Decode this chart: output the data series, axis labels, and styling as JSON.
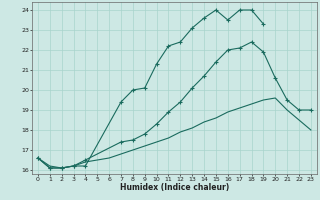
{
  "xlabel": "Humidex (Indice chaleur)",
  "bg_color": "#cde8e4",
  "grid_color": "#a8d4cc",
  "line_color": "#1a6b5e",
  "xlim": [
    -0.5,
    23.5
  ],
  "ylim": [
    15.8,
    24.4
  ],
  "xticks": [
    0,
    1,
    2,
    3,
    4,
    5,
    6,
    7,
    8,
    9,
    10,
    11,
    12,
    13,
    14,
    15,
    16,
    17,
    18,
    19,
    20,
    21,
    22,
    23
  ],
  "yticks": [
    16,
    17,
    18,
    19,
    20,
    21,
    22,
    23,
    24
  ],
  "line1_x": [
    0,
    1,
    2,
    3,
    4,
    7,
    8,
    9,
    10,
    11,
    12,
    13,
    14,
    15,
    16,
    17,
    18,
    19
  ],
  "line1_y": [
    16.6,
    16.1,
    16.1,
    16.2,
    16.2,
    19.4,
    20.0,
    20.1,
    21.3,
    22.2,
    22.4,
    23.1,
    23.6,
    24.0,
    23.5,
    24.0,
    24.0,
    23.3
  ],
  "line2_x": [
    0,
    1,
    2,
    3,
    4,
    7,
    8,
    9,
    10,
    11,
    12,
    13,
    14,
    15,
    16,
    17,
    18,
    19,
    20,
    21,
    22,
    23
  ],
  "line2_y": [
    16.6,
    16.1,
    16.1,
    16.2,
    16.5,
    17.4,
    17.5,
    17.8,
    18.3,
    18.9,
    19.4,
    20.1,
    20.7,
    21.4,
    22.0,
    22.1,
    22.4,
    21.9,
    20.6,
    19.5,
    19.0,
    19.0
  ],
  "line3_x": [
    0,
    1,
    2,
    3,
    4,
    5,
    6,
    7,
    8,
    9,
    10,
    11,
    12,
    13,
    14,
    15,
    16,
    17,
    18,
    19,
    20,
    21,
    22,
    23
  ],
  "line3_y": [
    16.6,
    16.2,
    16.1,
    16.2,
    16.4,
    16.5,
    16.6,
    16.8,
    17.0,
    17.2,
    17.4,
    17.6,
    17.9,
    18.1,
    18.4,
    18.6,
    18.9,
    19.1,
    19.3,
    19.5,
    19.6,
    19.0,
    18.5,
    18.0
  ]
}
